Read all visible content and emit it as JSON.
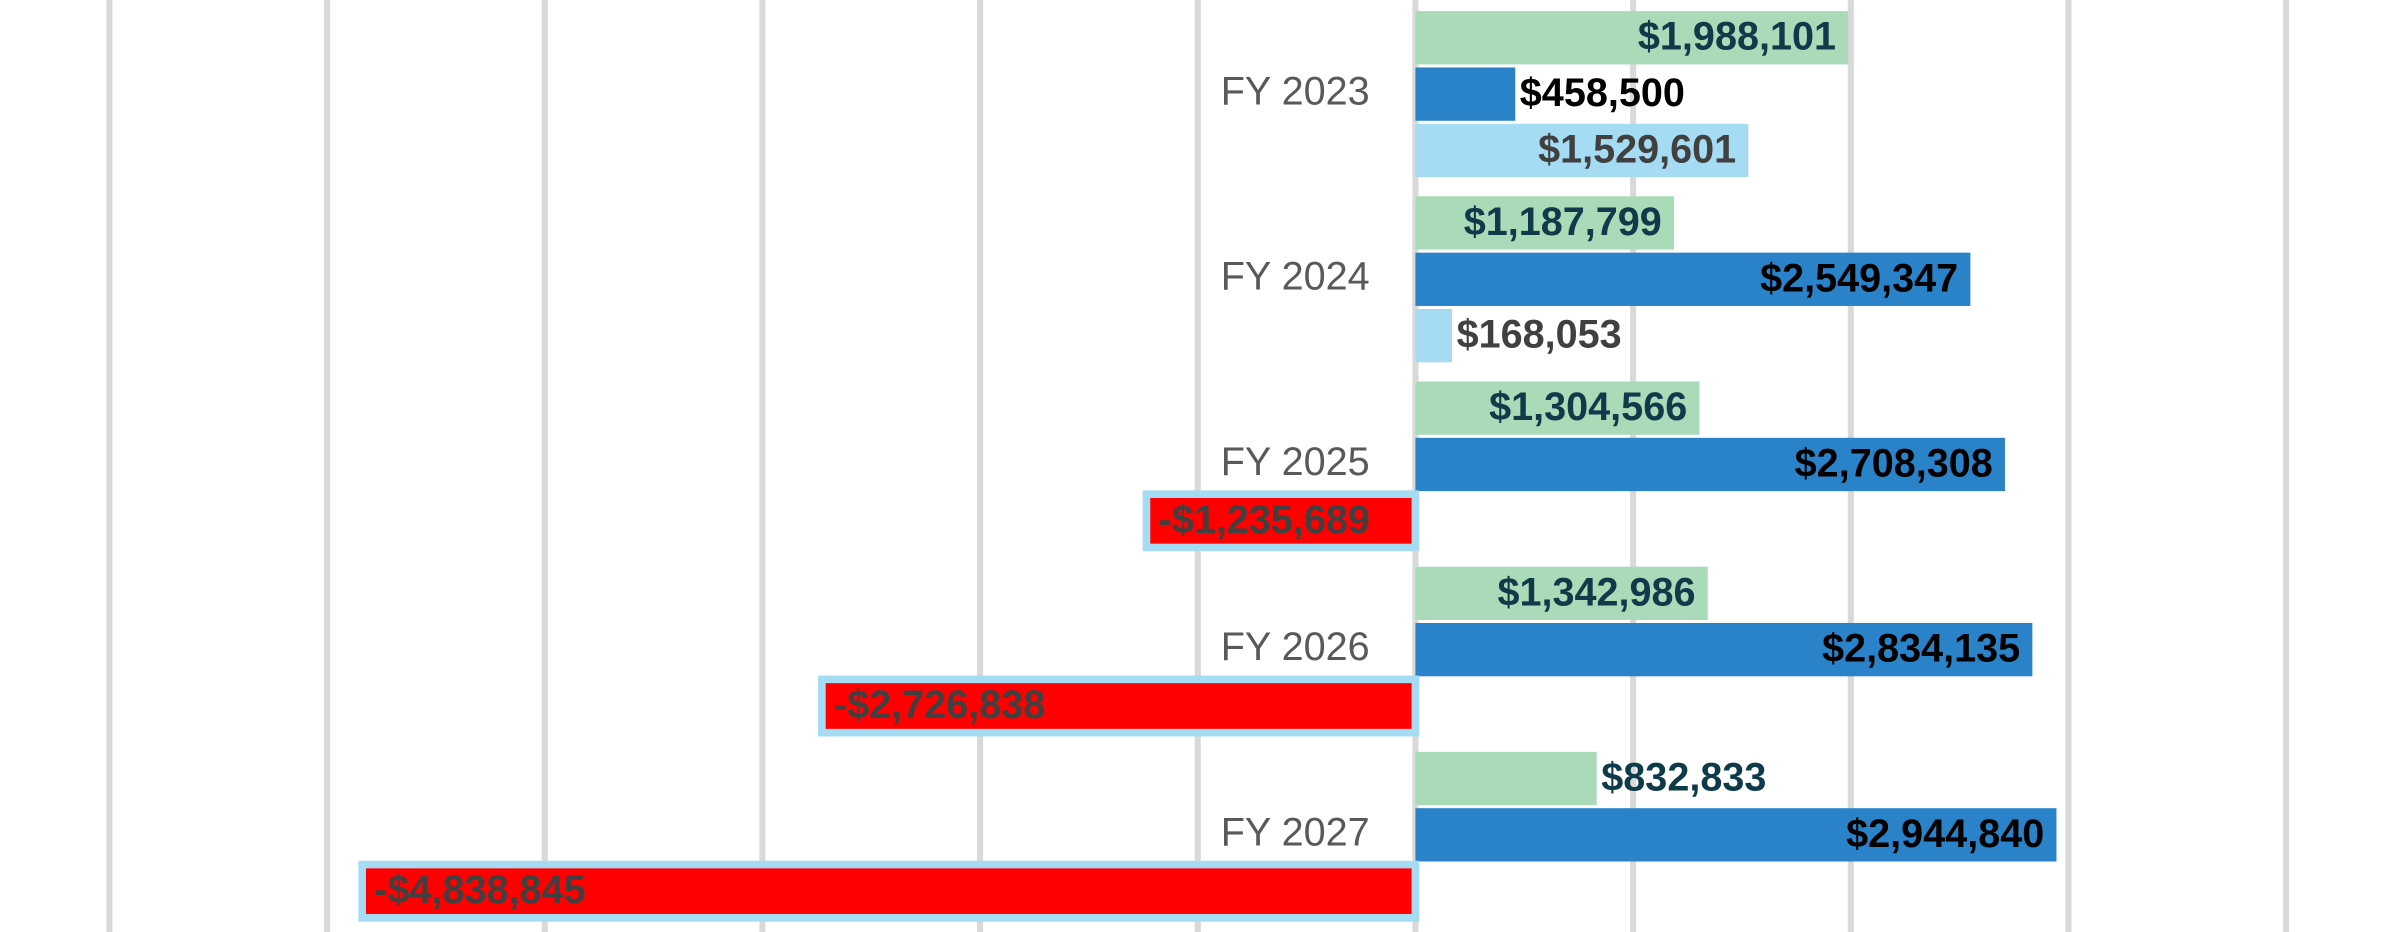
{
  "chart_data": {
    "type": "hbar",
    "categories": [
      "FY 2023",
      "FY 2024",
      "FY 2025",
      "FY 2026",
      "FY 2027"
    ],
    "series": [
      {
        "color": "#a9dbb8",
        "label_color": "#0e3a4a",
        "values": [
          1988101,
          1187799,
          1304566,
          1342986,
          832833
        ],
        "value_labels": [
          "$1,988,101",
          "$1,187,799",
          "$1,304,566",
          "$1,342,986",
          "$832,833"
        ]
      },
      {
        "color": "#2a82c8",
        "label_color": "#000000",
        "values": [
          458500,
          2549347,
          2708308,
          2834135,
          2944840
        ],
        "value_labels": [
          "$458,500",
          "$2,549,347",
          "$2,708,308",
          "$2,834,135",
          "$2,944,840"
        ]
      },
      {
        "color": "#a5dcf3",
        "negative_color": "#ff0000",
        "label_color": "#404040",
        "values": [
          1529601,
          168053,
          -1235689,
          -2726838,
          -4838845
        ],
        "value_labels": [
          "$1,529,601",
          "$168,053",
          "-$1,235,689",
          "-$2,726,838",
          "-$4,838,845"
        ]
      }
    ],
    "xlim": [
      -6500000,
      4470000
    ],
    "xticks": [
      -6000000,
      -5000000,
      -4000000,
      -3000000,
      -2000000,
      -1000000,
      0,
      1000000,
      2000000,
      3000000,
      4000000
    ],
    "grid": true
  }
}
